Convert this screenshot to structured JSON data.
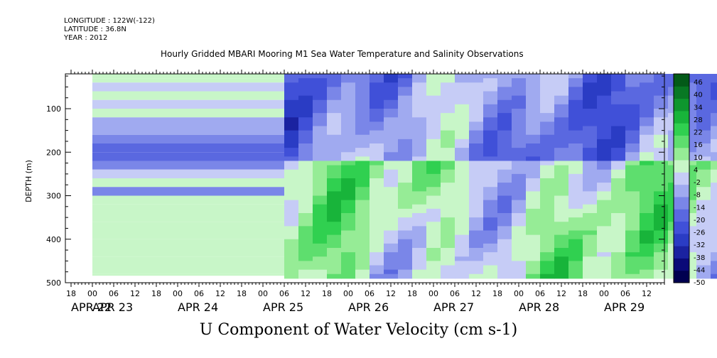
{
  "header": {
    "longitude": "LONGITUDE : 122W(-122)",
    "latitude": "LATITUDE : 36.8N",
    "year": "YEAR : 2012"
  },
  "chart_data": {
    "type": "heatmap",
    "title": "Hourly Gridded MBARI Mooring M1 Sea Water Temperature and Salinity Observations",
    "xlabel": "U Component of Water Velocity (cm s-1)",
    "ylabel": "DEPTH (m)",
    "y_reversed": true,
    "ylim": [
      500,
      20
    ],
    "y_ticks": [
      100,
      200,
      300,
      400,
      500
    ],
    "x_hour_ticks": [
      "18",
      "00",
      "06",
      "12",
      "18",
      "00",
      "06",
      "12",
      "18",
      "00",
      "06",
      "12",
      "18",
      "00",
      "06",
      "12",
      "18",
      "00",
      "06",
      "12",
      "18",
      "00",
      "06",
      "12",
      "18",
      "00",
      "06",
      "12"
    ],
    "x_date_labels": [
      "APR 22",
      "APR 23",
      "APR 24",
      "APR 25",
      "APR 26",
      "APR 27",
      "APR 28",
      "APR 29"
    ],
    "colorbar": {
      "levels": [
        -50,
        -44,
        -38,
        -32,
        -26,
        -20,
        -14,
        -8,
        -2,
        4,
        10,
        16,
        22,
        28,
        34,
        40,
        46
      ],
      "labels": [
        "46",
        "40",
        "34",
        "28",
        "22",
        "16",
        "10",
        "4",
        "-2",
        "-8",
        "-14",
        "-20",
        "-26",
        "-32",
        "-38",
        "-44",
        "-50"
      ],
      "colors": [
        "#000050",
        "#0a0a78",
        "#1a22a0",
        "#2a3cc4",
        "#4050d8",
        "#5a68e0",
        "#7a86e8",
        "#a0aaf0",
        "#c6ccf6",
        "#c8f6c8",
        "#96ec96",
        "#5ede6e",
        "#30d050",
        "#18b43a",
        "#0e962e",
        "#087824",
        "#035a18"
      ]
    },
    "profile_uniform": {
      "depths": [
        20,
        30,
        40,
        60,
        80,
        100,
        120,
        140,
        160,
        180,
        200,
        220,
        240,
        260,
        280,
        300,
        320,
        340,
        360,
        380,
        400,
        420,
        440,
        460,
        480
      ],
      "values": [
        7,
        5,
        -1,
        6,
        2,
        4,
        -4,
        -7,
        -10,
        -15,
        -20,
        -14,
        3,
        7,
        -9,
        6,
        7,
        5,
        6,
        5,
        6,
        4,
        5,
        7,
        6
      ],
      "time_range": [
        "APR 22 00",
        "APR 24 06"
      ]
    }
  }
}
